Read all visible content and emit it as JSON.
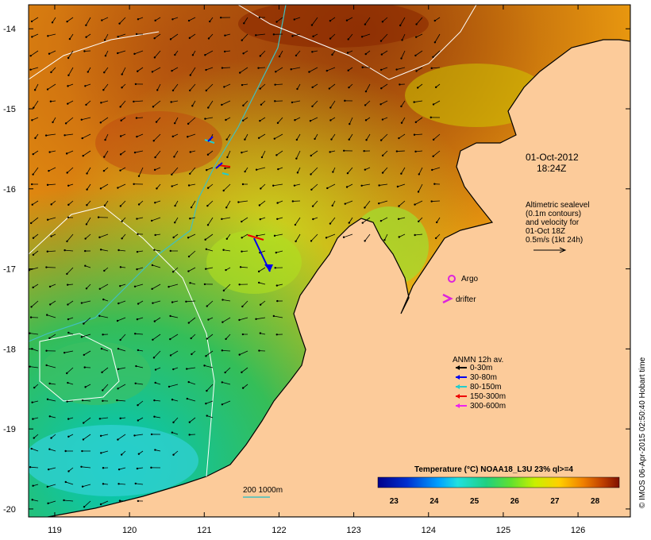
{
  "map": {
    "axes": {
      "lon_ticks": [
        "119",
        "120",
        "121",
        "122",
        "123",
        "124",
        "125",
        "126"
      ],
      "lat_ticks": [
        "-14",
        "-15",
        "-16",
        "-17",
        "-18",
        "-19",
        "-20"
      ],
      "lon_range": [
        118.65,
        126.7
      ],
      "lat_range": [
        -20.1,
        -13.7
      ]
    },
    "timestamp_line1": "01-Oct-2012",
    "timestamp_line2": "18:24Z",
    "altimetry_note": [
      "Altimetric sealevel",
      "(0.1m contours)",
      "and velocity for",
      "01-Oct 18Z",
      "0.5m/s (1kt 24h)"
    ],
    "legend_platforms": [
      {
        "label": "Argo",
        "color": "#dd22dd",
        "symbol": "circle"
      },
      {
        "label": "drifter",
        "color": "#dd22dd",
        "symbol": "chevron"
      }
    ],
    "anmn_title": "ANMN 12h av.",
    "anmn_legend": [
      {
        "label": "0-30m",
        "color": "#000000"
      },
      {
        "label": "30-80m",
        "color": "#0000ee"
      },
      {
        "label": "80-150m",
        "color": "#22cccc"
      },
      {
        "label": "150-300m",
        "color": "#ee0000"
      },
      {
        "label": "300-600m",
        "color": "#ee22ee"
      }
    ],
    "bathymetry_label": "200  1000m",
    "colorbar_title": "Temperature (°C) NOAA18_L3U 23% ql>=4",
    "colorbar_labels": [
      "23",
      "24",
      "25",
      "26",
      "27",
      "28"
    ],
    "colorbar_range": [
      22.6,
      28.6
    ],
    "credit": "© IMOS 06-Apr-2015 02:50:40 Hobart time",
    "colors": {
      "land": "#fccb9a",
      "coast": "#000000",
      "contour_200": "#ffffff",
      "contour_1000": "#40c0c0",
      "frame": "#000000"
    }
  }
}
